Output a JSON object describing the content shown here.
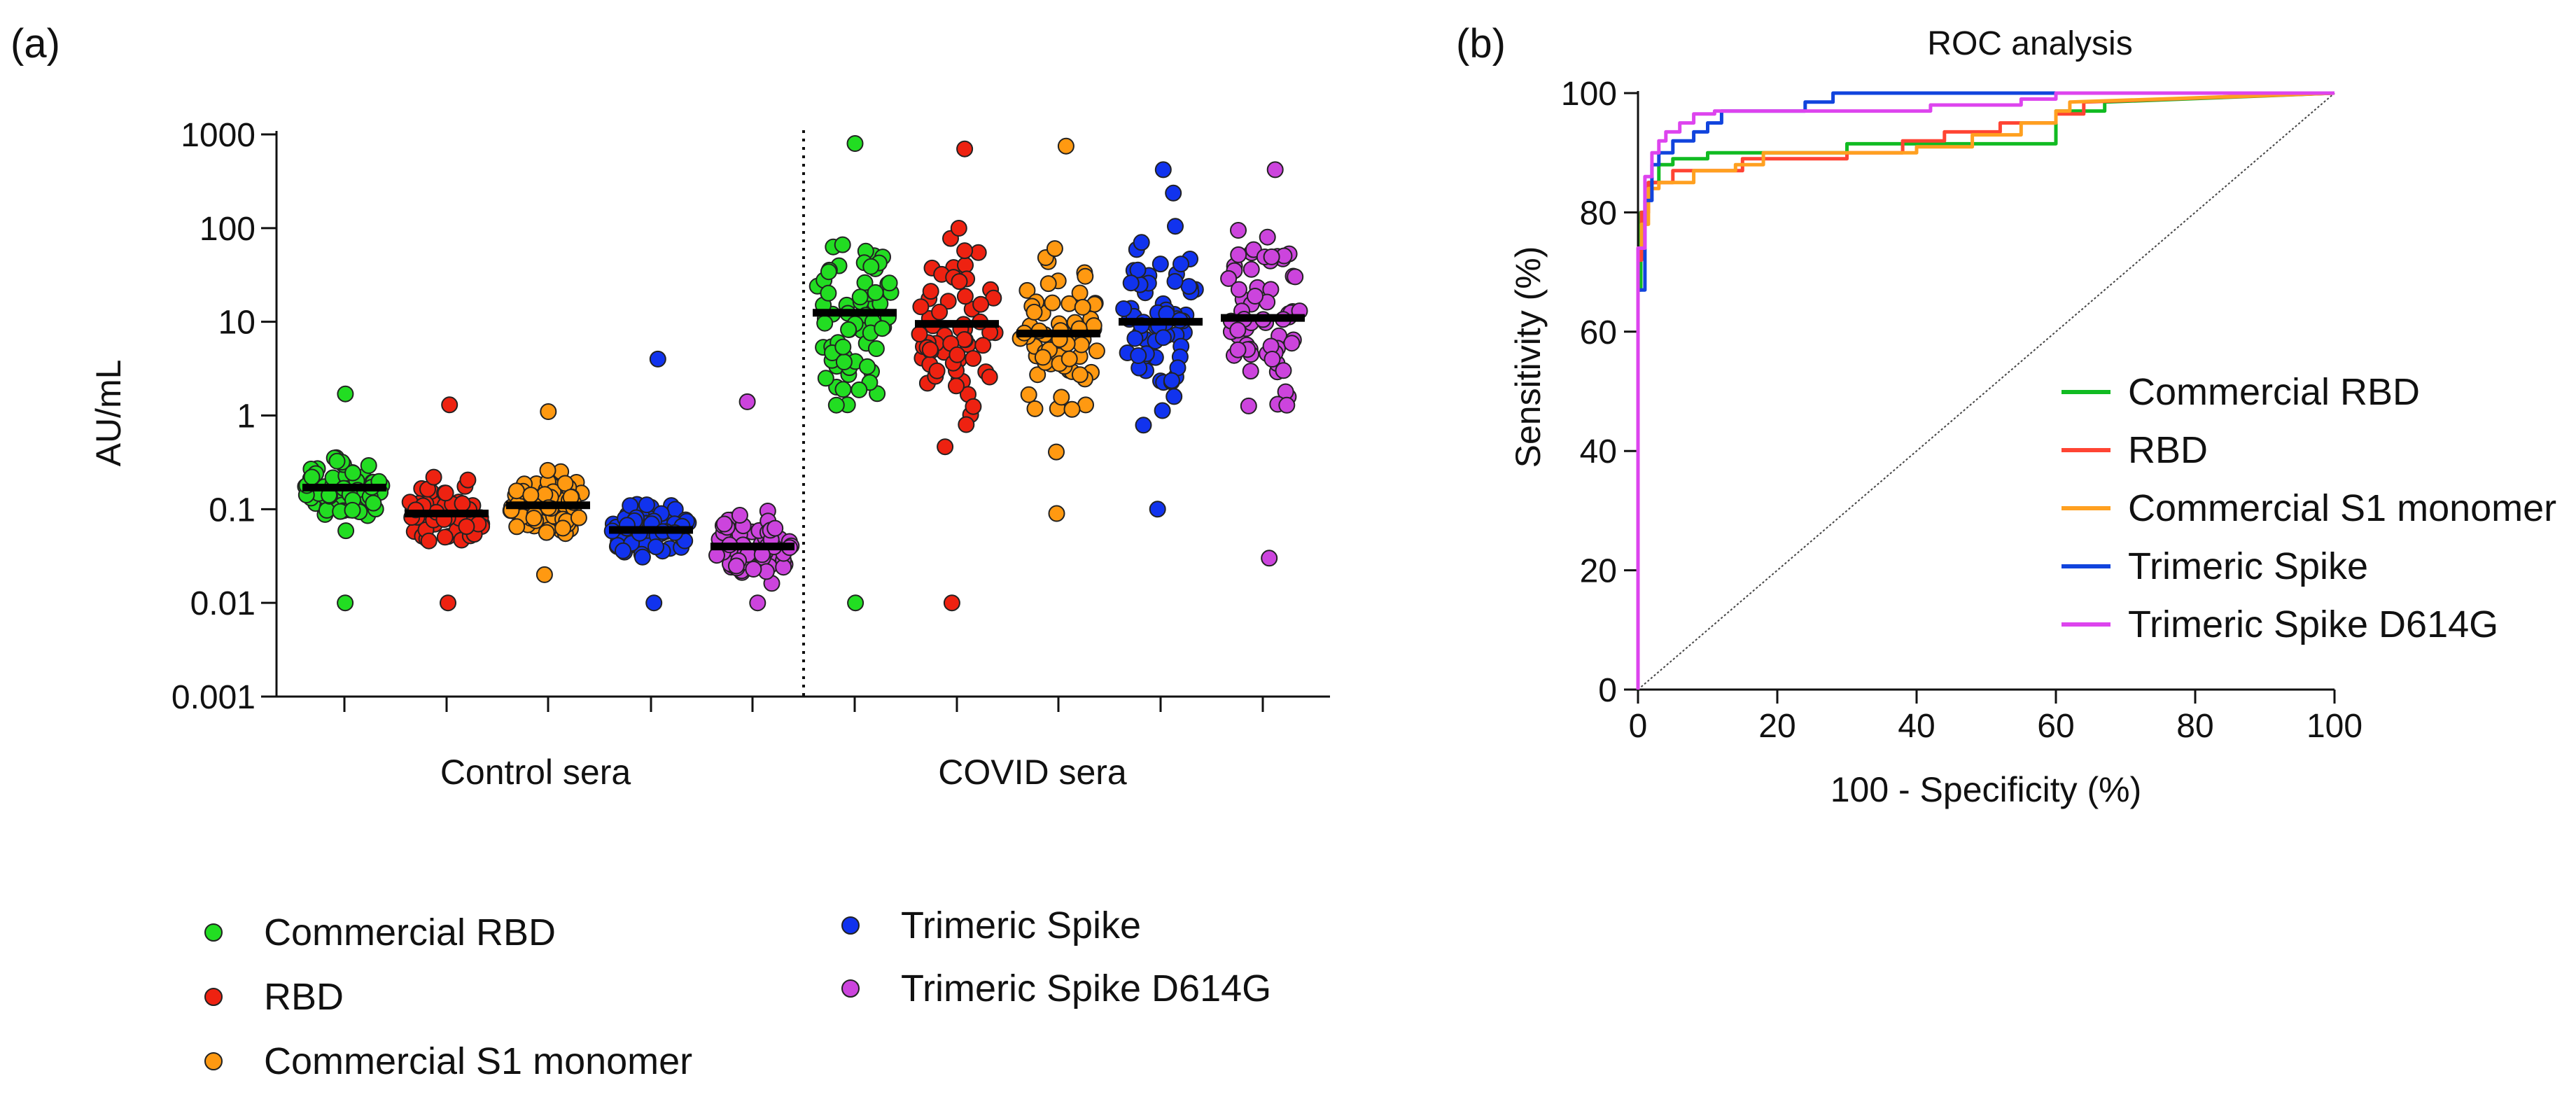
{
  "panel_labels": {
    "a": "(a)",
    "b": "(b)"
  },
  "chart_data": [
    {
      "type": "scatter",
      "subtype": "log-dot-plot-with-medians",
      "ylabel": "AU/mL",
      "yscale": "log",
      "ylim": [
        0.001,
        1000
      ],
      "yticks": [
        "1000",
        "100",
        "10",
        "1",
        "0.1",
        "0.01",
        "0.001"
      ],
      "groups": [
        "Control sera",
        "COVID sera"
      ],
      "legend_position": "bottom-left",
      "series": [
        {
          "name": "Commercial RBD",
          "color": "#22dd22",
          "medians": {
            "control": 0.17,
            "covid": 12.5
          },
          "ranges": {
            "control": [
              0.01,
              1.7
            ],
            "covid": [
              0.01,
              800
            ]
          }
        },
        {
          "name": "RBD",
          "color": "#ee2211",
          "medians": {
            "control": 0.09,
            "covid": 9.5
          },
          "ranges": {
            "control": [
              0.01,
              1.3
            ],
            "covid": [
              0.01,
              700
            ]
          }
        },
        {
          "name": "Commercial S1 monomer",
          "color": "#ff9911",
          "medians": {
            "control": 0.11,
            "covid": 7.5
          },
          "ranges": {
            "control": [
              0.02,
              1.1
            ],
            "covid": [
              0.09,
              750
            ]
          }
        },
        {
          "name": "Trimeric Spike",
          "color": "#1133ee",
          "medians": {
            "control": 0.06,
            "covid": 10
          },
          "ranges": {
            "control": [
              0.01,
              4
            ],
            "covid": [
              0.1,
              420
            ]
          }
        },
        {
          "name": "Trimeric Spike D614G",
          "color": "#cc44dd",
          "medians": {
            "control": 0.04,
            "covid": 11
          },
          "ranges": {
            "control": [
              0.01,
              1.4
            ],
            "covid": [
              0.03,
              420
            ]
          }
        }
      ]
    },
    {
      "type": "line",
      "title": "ROC analysis",
      "xlabel": "100 - Specificity (%)",
      "ylabel": "Sensitivity (%)",
      "xlim": [
        0,
        100
      ],
      "ylim": [
        0,
        100
      ],
      "xticks": [
        "0",
        "20",
        "40",
        "60",
        "80",
        "100"
      ],
      "yticks": [
        "0",
        "20",
        "40",
        "60",
        "80",
        "100"
      ],
      "legend_position": "right-middle",
      "reference_line": {
        "x": [
          0,
          100
        ],
        "y": [
          0,
          100
        ]
      },
      "series": [
        {
          "name": "Commercial RBD",
          "color": "#11bb22",
          "x": [
            0,
            0,
            0.4,
            0.4,
            1.5,
            1.5,
            3,
            3,
            5,
            5,
            10,
            10,
            20,
            20,
            30,
            30,
            60,
            60,
            67,
            67,
            100
          ],
          "y": [
            0,
            67,
            67,
            80,
            80,
            85,
            85,
            88,
            88,
            89,
            89,
            90,
            90,
            90,
            90,
            91.5,
            91.5,
            97,
            97,
            98.5,
            100
          ]
        },
        {
          "name": "RBD",
          "color": "#ff4433",
          "x": [
            0,
            0,
            0.5,
            0.5,
            1.5,
            1.5,
            5,
            5,
            15,
            15,
            30,
            30,
            38,
            38,
            44,
            44,
            52,
            52,
            60,
            60,
            64,
            64,
            100
          ],
          "y": [
            0,
            72,
            72,
            80,
            80,
            85,
            85,
            87,
            87,
            89,
            89,
            90,
            90,
            92,
            92,
            93.5,
            93.5,
            95,
            95,
            96.5,
            96.5,
            98.5,
            100
          ]
        },
        {
          "name": "Commercial S1 monomer",
          "color": "#ffa020",
          "x": [
            0,
            0,
            0.5,
            0.5,
            1.5,
            1.5,
            3,
            3,
            8,
            8,
            14,
            14,
            18,
            18,
            40,
            40,
            48,
            48,
            55,
            55,
            60,
            60,
            62,
            62,
            100
          ],
          "y": [
            0,
            74,
            74,
            78,
            78,
            84,
            84,
            85,
            85,
            87,
            87,
            88,
            88,
            90,
            90,
            91,
            91,
            93,
            93,
            95,
            95,
            97,
            97,
            98.5,
            100
          ]
        },
        {
          "name": "Trimeric Spike",
          "color": "#1144dd",
          "x": [
            0,
            0,
            1,
            1,
            2,
            2,
            3,
            3,
            5,
            5,
            8,
            8,
            10,
            10,
            12,
            12,
            24,
            24,
            28,
            28,
            100
          ],
          "y": [
            0,
            67,
            67,
            82,
            82,
            88,
            88,
            90,
            90,
            92,
            92,
            93.5,
            93.5,
            95,
            95,
            97,
            97,
            98.5,
            98.5,
            100,
            100
          ]
        },
        {
          "name": "Trimeric Spike D614G",
          "color": "#dd44ee",
          "x": [
            0,
            0,
            1,
            1,
            2,
            2,
            3,
            3,
            4,
            4,
            6,
            6,
            8,
            8,
            11,
            11,
            42,
            42,
            55,
            55,
            60,
            60,
            100
          ],
          "y": [
            0,
            74,
            74,
            86,
            86,
            90,
            90,
            92,
            92,
            93.5,
            93.5,
            95,
            95,
            96.5,
            96.5,
            97,
            97,
            98,
            98,
            99,
            99,
            100,
            100
          ]
        }
      ]
    }
  ]
}
